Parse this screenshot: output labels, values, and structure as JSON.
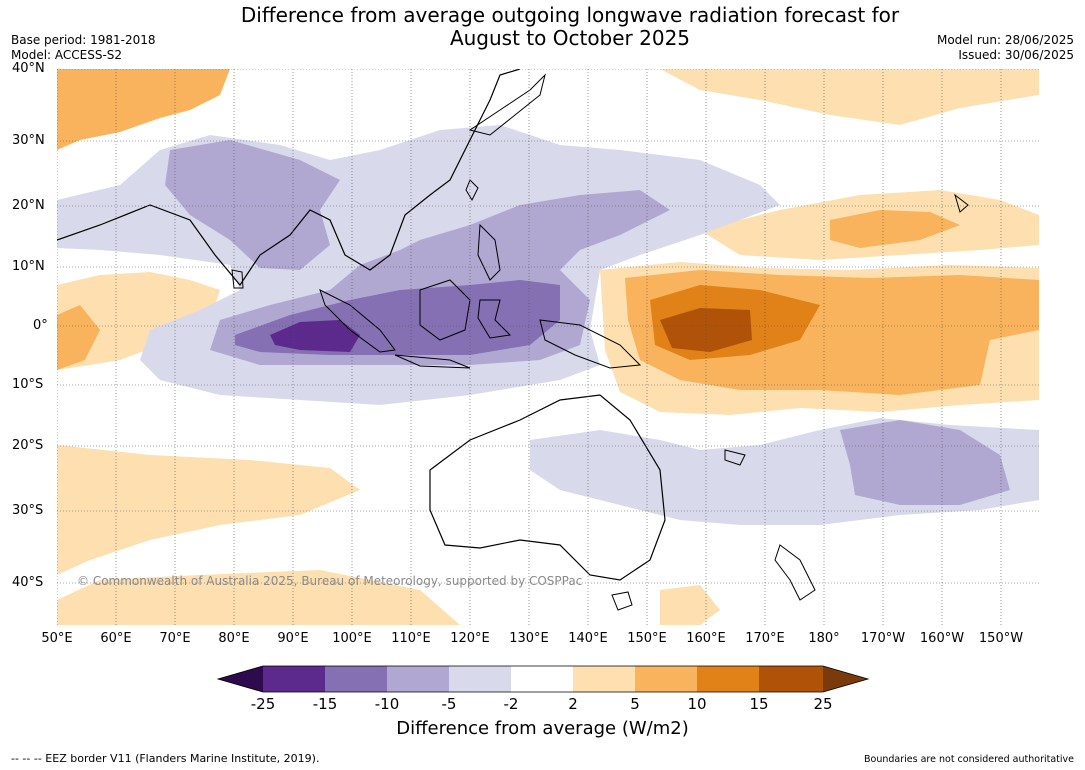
{
  "title_line1": "Difference from average outgoing longwave radiation forecast for",
  "title_line2": "August to October 2025",
  "base_period": "Base period: 1981-2018",
  "model": "Model: ACCESS-S2",
  "model_run": "Model run: 28/06/2025",
  "issued": "Issued: 30/06/2025",
  "copyright": "© Commonwealth of Australia 2025, Bureau of Meteorology, supported by COSPPac",
  "lat_labels": [
    "40°N",
    "30°N",
    "20°N",
    "10°N",
    "0°",
    "10°S",
    "20°S",
    "30°S",
    "40°S"
  ],
  "lon_labels": [
    "50°E",
    "60°E",
    "70°E",
    "80°E",
    "90°E",
    "100°E",
    "110°E",
    "120°E",
    "130°E",
    "140°E",
    "150°E",
    "160°E",
    "170°E",
    "180°",
    "170°W",
    "160°W",
    "150°W"
  ],
  "colorbar": {
    "title": "Difference from average (W/m2)",
    "ticks": [
      "-25",
      "-15",
      "-10",
      "-5",
      "-2",
      "2",
      "5",
      "10",
      "15",
      "25"
    ],
    "colors": [
      "#2e0a4e",
      "#5b2a8c",
      "#8470b2",
      "#b1a8d2",
      "#d9d9ec",
      "#ffffff",
      "#fddfb0",
      "#f9b35c",
      "#e08218",
      "#b05308",
      "#7a3a0c"
    ]
  },
  "footer_left": "-- -- -- EEZ border V11 (Flanders Marine Institute, 2019).",
  "footer_right": "Boundaries are not considered authoritative"
}
